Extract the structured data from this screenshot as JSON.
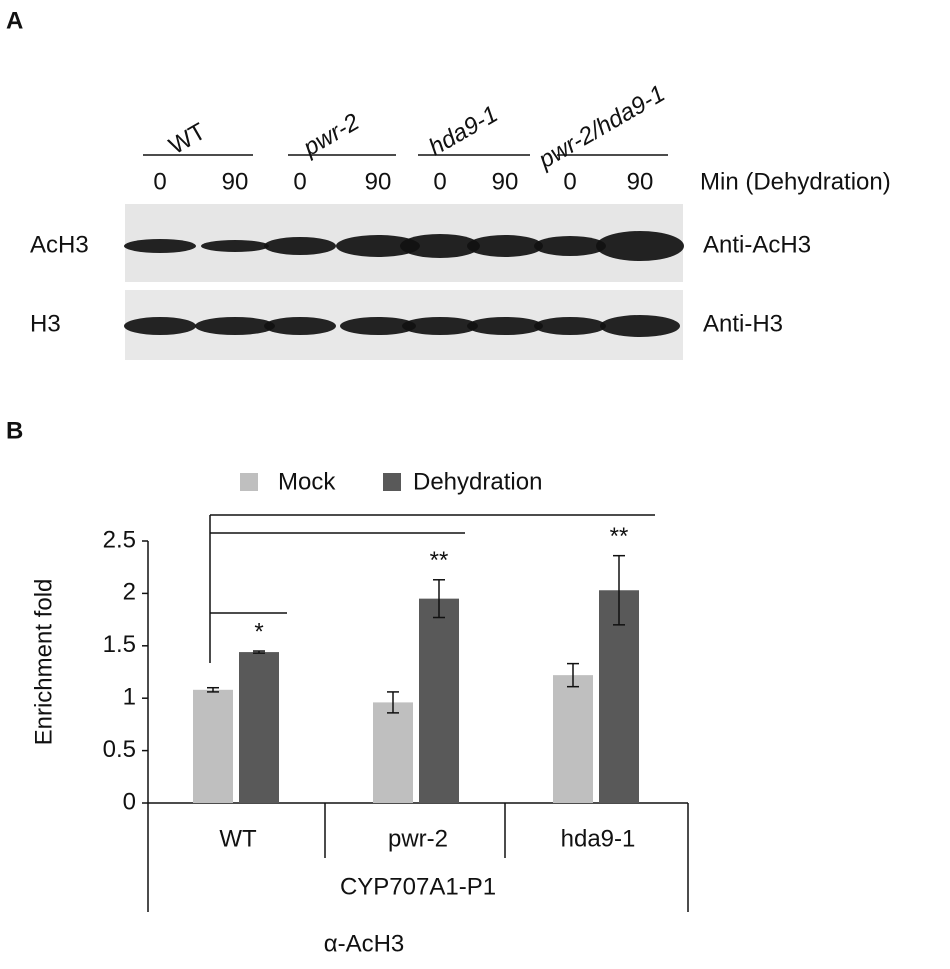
{
  "panels": [
    "A",
    "B"
  ],
  "blot": {
    "lanes": [
      {
        "name": "WT",
        "times": [
          "0",
          "90"
        ]
      },
      {
        "name": "pwr-2",
        "times": [
          "0",
          "90"
        ]
      },
      {
        "name": "hda9-1",
        "times": [
          "0",
          "90"
        ]
      },
      {
        "name": "pwr-2/hda9-1",
        "times": [
          "0",
          "90"
        ]
      }
    ],
    "time_axis_label": "Min (Dehydration)",
    "rows": [
      {
        "label": "AcH3",
        "antibody": "Anti-AcH3"
      },
      {
        "label": "H3",
        "antibody": "Anti-H3"
      }
    ]
  },
  "chart_data": {
    "type": "bar",
    "y_label": "Enrichment fold",
    "categories": [
      "WT",
      "pwr-2",
      "hda9-1"
    ],
    "group_labels": [
      "CYP707A1-P1",
      "α-AcH3"
    ],
    "series": [
      {
        "name": "Mock",
        "color": "#bfbfbf",
        "values": [
          1.08,
          0.96,
          1.22
        ],
        "errors": [
          0.02,
          0.1,
          0.11
        ]
      },
      {
        "name": "Dehydration",
        "color": "#595959",
        "values": [
          1.44,
          1.95,
          2.03
        ],
        "errors": [
          0.01,
          0.18,
          0.33
        ],
        "annotations": [
          "*",
          "**",
          "**"
        ]
      }
    ],
    "ylim": [
      0,
      2.5
    ],
    "yticks": [
      0,
      0.5,
      1,
      1.5,
      2,
      2.5
    ]
  }
}
